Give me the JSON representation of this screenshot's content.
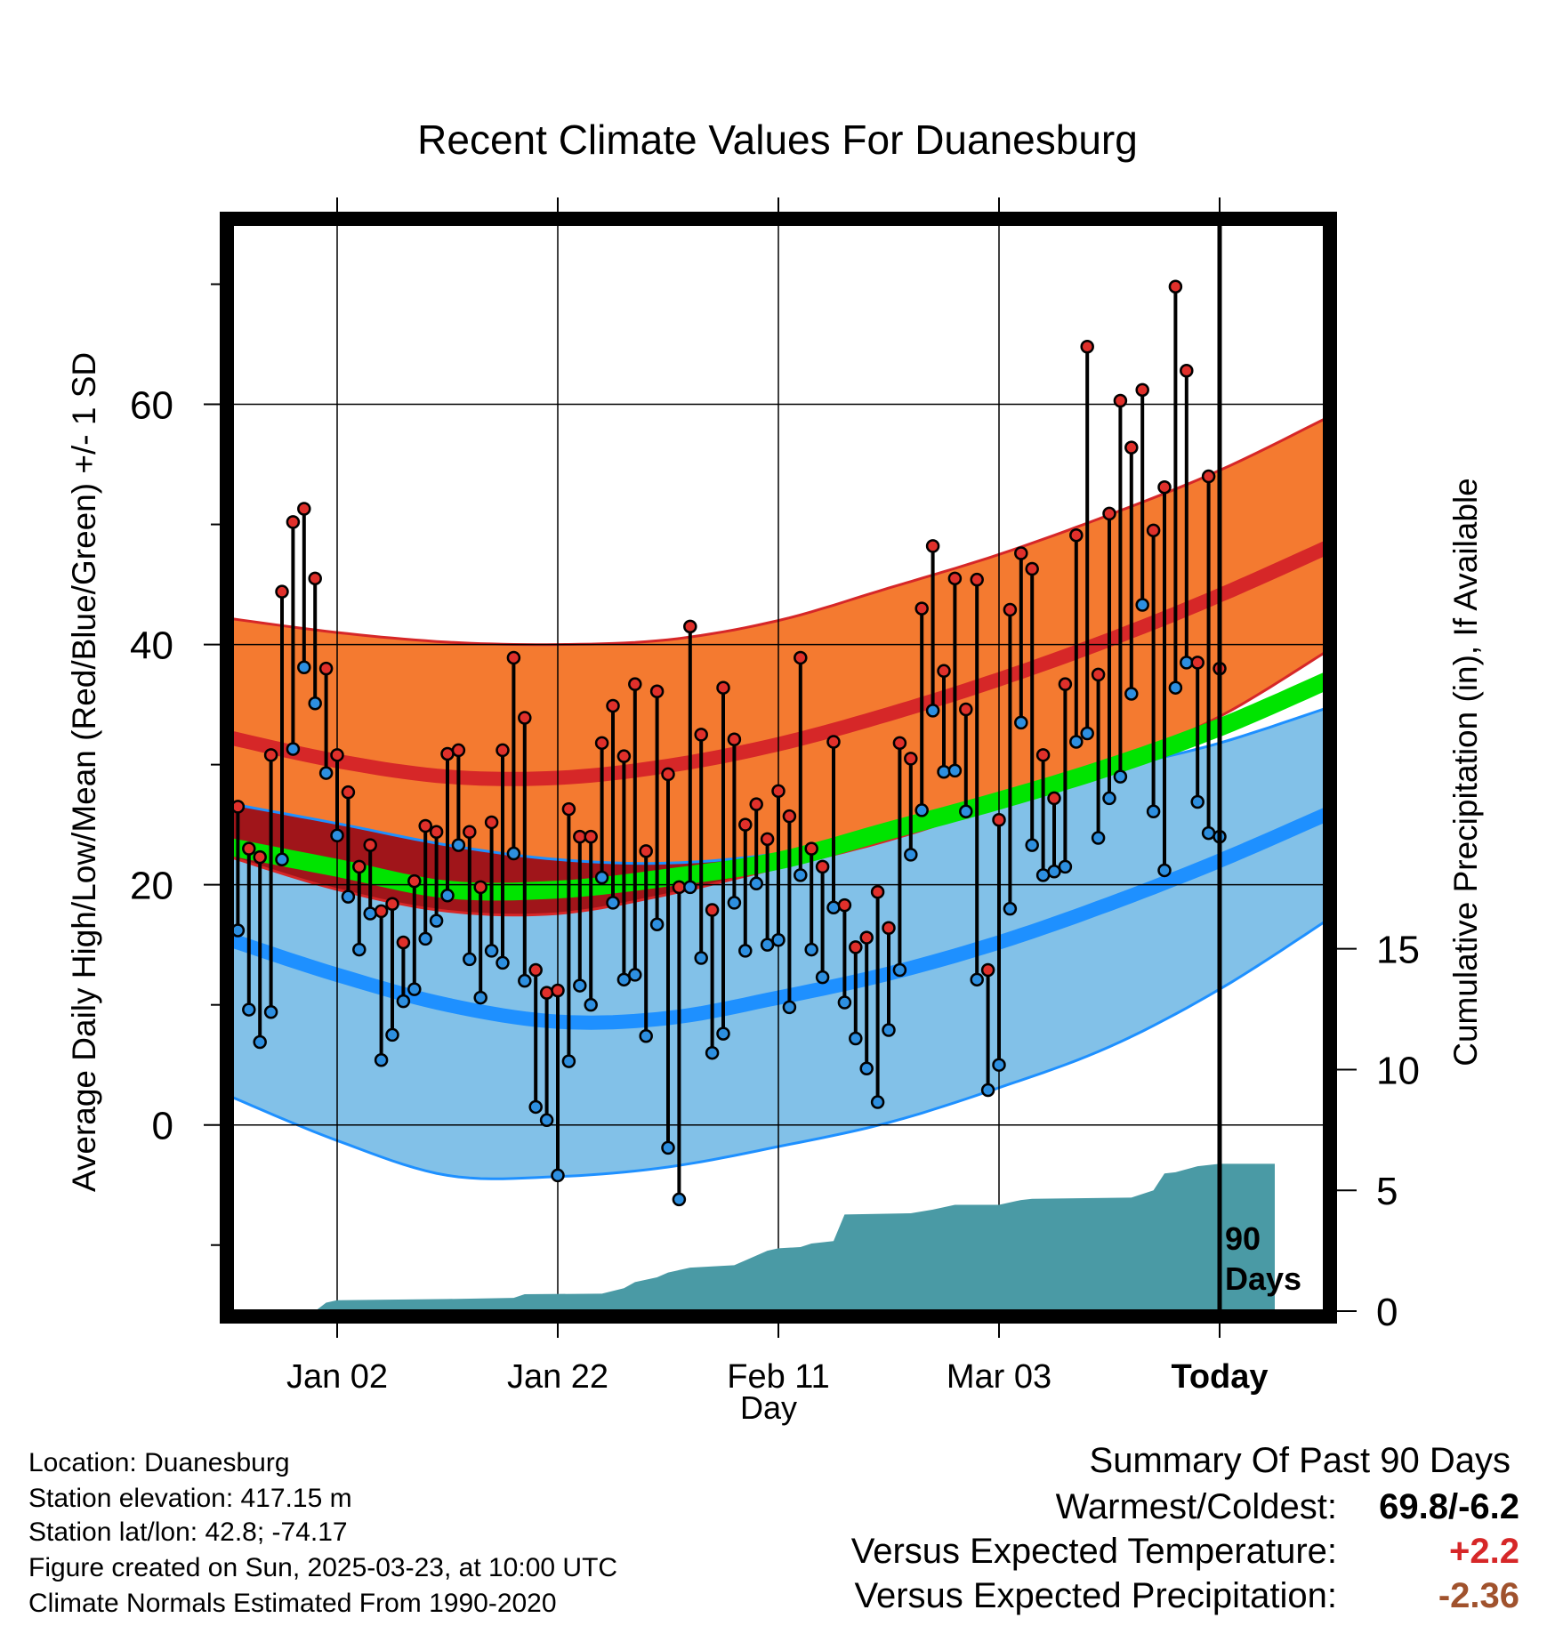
{
  "chart_data": {
    "type": "line",
    "title": "Recent Climate Values For Duanesburg",
    "xlabel": "Day",
    "ylabel": "Average Daily High/Low/Mean (Red/Blue/Green) +/- 1 SD",
    "y2label": "Cumulative Precipitation (in), If Available",
    "x_ticks": [
      "Jan 02",
      "Jan 22",
      "Feb 11",
      "Mar 03",
      "Today"
    ],
    "x_tick_days": [
      10,
      30,
      50,
      70,
      90
    ],
    "x_range": [
      0,
      100
    ],
    "y_ticks": [
      0,
      20,
      40,
      60
    ],
    "ylim": [
      -15.5,
      75
    ],
    "y2_ticks": [
      0,
      5,
      10,
      15
    ],
    "y2lim": [
      0,
      45
    ],
    "today_label": "90 Days",
    "grid": true,
    "normals": {
      "days": [
        0,
        10,
        20,
        30,
        40,
        50,
        60,
        70,
        80,
        90,
        100
      ],
      "high_mean": [
        32.3,
        30.3,
        29.0,
        28.9,
        29.9,
        31.7,
        34.2,
        37.1,
        40.4,
        44.1,
        48.2
      ],
      "high_upper": [
        42.2,
        41.0,
        40.2,
        40.0,
        40.4,
        42.0,
        44.7,
        47.5,
        50.8,
        54.5,
        59.0
      ],
      "high_lower": [
        22.4,
        19.6,
        17.8,
        17.6,
        19.2,
        21.4,
        23.7,
        26.7,
        30.0,
        34.0,
        39.6
      ],
      "low_mean": [
        15.5,
        12.5,
        10.0,
        8.6,
        8.9,
        10.6,
        12.6,
        15.2,
        18.4,
        22.0,
        26.0
      ],
      "low_upper": [
        26.8,
        25.1,
        23.3,
        22.1,
        21.8,
        22.6,
        24.3,
        26.8,
        29.5,
        31.8,
        34.8
      ],
      "low_lower": [
        2.5,
        -1.3,
        -4.2,
        -4.3,
        -3.5,
        -1.8,
        0.2,
        3.1,
        6.5,
        11.3,
        17.2
      ],
      "mean": [
        23.2,
        21.4,
        19.6,
        19.6,
        20.6,
        22.0,
        24.5,
        27.0,
        29.8,
        33.1,
        37.1
      ]
    },
    "observed": {
      "days": [
        0,
        1,
        2,
        3,
        4,
        5,
        6,
        7,
        8,
        9,
        10,
        11,
        12,
        13,
        14,
        15,
        16,
        17,
        18,
        19,
        20,
        21,
        22,
        23,
        24,
        25,
        26,
        27,
        28,
        29,
        30,
        31,
        32,
        33,
        34,
        35,
        36,
        37,
        38,
        39,
        40,
        41,
        42,
        43,
        44,
        45,
        46,
        47,
        48,
        49,
        50,
        51,
        52,
        53,
        54,
        55,
        56,
        57,
        58,
        59,
        60,
        61,
        62,
        63,
        64,
        65,
        66,
        67,
        68,
        69,
        70,
        71,
        72,
        73,
        74,
        75,
        76,
        77,
        78,
        79,
        80,
        81,
        82,
        83,
        84,
        85,
        86,
        87,
        88,
        89,
        90
      ],
      "high": [
        17.5,
        26.5,
        23.0,
        22.3,
        30.8,
        44.4,
        50.2,
        51.3,
        45.5,
        38.0,
        30.8,
        27.7,
        21.5,
        23.3,
        17.8,
        18.4,
        15.2,
        20.3,
        24.9,
        24.4,
        30.9,
        31.2,
        24.4,
        19.8,
        25.2,
        31.2,
        38.9,
        33.9,
        12.9,
        11.0,
        11.2,
        26.3,
        24.0,
        24.0,
        31.8,
        34.9,
        30.7,
        36.7,
        22.8,
        36.1,
        29.2,
        19.8,
        41.5,
        32.5,
        17.9,
        36.4,
        32.1,
        25.0,
        26.7,
        23.8,
        27.8,
        25.7,
        38.9,
        23.0,
        21.5,
        31.9,
        18.3,
        14.8,
        15.6,
        19.4,
        16.4,
        31.8,
        30.5,
        43.0,
        48.2,
        37.8,
        45.5,
        34.6,
        45.4,
        12.9,
        25.4,
        42.9,
        47.6,
        46.3,
        30.8,
        27.2,
        36.7,
        49.1,
        64.8,
        37.5,
        50.9,
        60.3,
        56.4,
        61.2,
        49.5,
        53.1,
        69.8,
        62.8,
        38.5,
        54.0,
        38.0
      ],
      "low": [
        -5.6,
        16.2,
        9.6,
        6.9,
        9.4,
        22.1,
        31.3,
        38.1,
        35.1,
        29.3,
        24.1,
        19.0,
        14.6,
        17.6,
        5.4,
        7.5,
        10.3,
        11.3,
        15.5,
        17.0,
        19.1,
        23.3,
        13.8,
        10.6,
        14.5,
        13.5,
        22.6,
        12.0,
        1.5,
        0.4,
        -4.2,
        5.3,
        11.6,
        10.0,
        20.6,
        18.5,
        12.1,
        12.5,
        7.4,
        16.7,
        -1.9,
        -6.2,
        19.8,
        13.9,
        6.0,
        7.6,
        18.5,
        14.5,
        20.1,
        15.0,
        15.4,
        9.8,
        20.8,
        14.6,
        12.3,
        18.1,
        10.2,
        7.2,
        4.7,
        1.9,
        7.9,
        12.9,
        22.5,
        26.2,
        34.5,
        29.4,
        29.5,
        26.1,
        12.1,
        2.9,
        5.0,
        18.0,
        33.5,
        23.3,
        20.8,
        21.1,
        21.5,
        31.9,
        32.6,
        23.9,
        27.2,
        29.0,
        35.9,
        43.3,
        26.1,
        21.2,
        36.4,
        38.5,
        26.9,
        24.3,
        24.0
      ]
    },
    "precip_cumulative": {
      "days": [
        0,
        8,
        9,
        10,
        20,
        26,
        27,
        34,
        36,
        37,
        39,
        40,
        42,
        44,
        46,
        47,
        49,
        50,
        52,
        53,
        55,
        56,
        62,
        64,
        66,
        70,
        72,
        73,
        82,
        84,
        85,
        86,
        88,
        90,
        95
      ],
      "values": [
        0,
        0,
        0.35,
        0.45,
        0.5,
        0.55,
        0.7,
        0.72,
        0.95,
        1.2,
        1.4,
        1.6,
        1.8,
        1.85,
        1.9,
        2.1,
        2.5,
        2.6,
        2.65,
        2.8,
        2.9,
        4.0,
        4.05,
        4.2,
        4.4,
        4.4,
        4.6,
        4.65,
        4.7,
        5.0,
        5.7,
        5.75,
        6.0,
        6.1,
        6.1
      ]
    },
    "colors": {
      "high_band": "#f47a30",
      "high_line": "#d62728",
      "low_band": "#82c1e8",
      "low_line": "#1e90ff",
      "mean_line": "#00e400",
      "overlap_band": "#a0151a",
      "precip_fill": "#4a9aa5",
      "marker_high": "#e0302b",
      "marker_low": "#2d8fe0"
    }
  },
  "footer": {
    "location": "Location: Duanesburg",
    "elevation": "Station elevation: 417.15 m",
    "latlon": "Station lat/lon: 42.8; -74.17",
    "created": "Figure created on Sun, 2025-03-23, at 10:00 UTC",
    "normals": "Climate Normals Estimated From 1990-2020"
  },
  "summary": {
    "title": "Summary Of Past 90 Days",
    "warm_cold_label": "Warmest/Coldest:",
    "warm_cold_value": "69.8/-6.2",
    "temp_label": "Versus Expected Temperature:",
    "temp_value": "+2.2",
    "temp_color": "#d62728",
    "precip_label": "Versus Expected Precipitation:",
    "precip_value": "-2.36",
    "precip_color": "#a0522d"
  }
}
